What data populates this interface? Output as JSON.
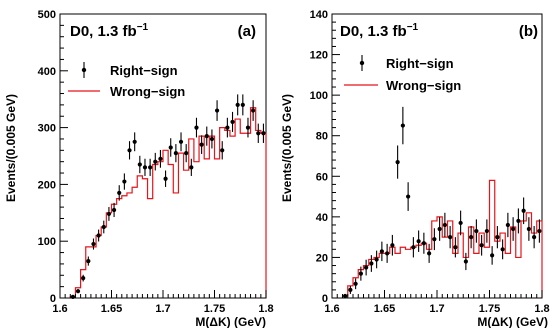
{
  "colors": {
    "right_sign": "#000000",
    "wrong_sign": "#e8141c"
  },
  "chart_data": [
    {
      "type": "scatter",
      "panel_label": "(a)",
      "title": "D0, 1.3 fb",
      "title_sup": "−1",
      "xlabel": "M(ΔK) (GeV)",
      "ylabel": "Events/(0.005 GeV)",
      "xlim": [
        1.6,
        1.8
      ],
      "ylim": [
        0,
        500
      ],
      "xticks": [
        "1.6",
        "1.65",
        "1.7",
        "1.75",
        "1.8"
      ],
      "yticks": [
        "0",
        "100",
        "200",
        "300",
        "400",
        "500"
      ],
      "legend": [
        "Right−sign",
        "Wrong−sign"
      ],
      "legend_position": "upper-left",
      "series": [
        {
          "name": "Right−sign",
          "style": "points-with-errors",
          "x": [
            1.6125,
            1.6175,
            1.6225,
            1.6275,
            1.6325,
            1.6375,
            1.6425,
            1.6475,
            1.6525,
            1.6575,
            1.6625,
            1.6675,
            1.6725,
            1.6775,
            1.6825,
            1.6875,
            1.6925,
            1.6975,
            1.7025,
            1.7075,
            1.7125,
            1.7175,
            1.7225,
            1.7275,
            1.7325,
            1.7375,
            1.7425,
            1.7475,
            1.7525,
            1.7575,
            1.7625,
            1.7675,
            1.7725,
            1.7775,
            1.7825,
            1.7875,
            1.7925,
            1.7975
          ],
          "y": [
            2,
            12,
            35,
            65,
            95,
            110,
            125,
            148,
            155,
            185,
            205,
            260,
            275,
            235,
            230,
            230,
            240,
            245,
            210,
            265,
            255,
            275,
            255,
            230,
            300,
            270,
            285,
            280,
            330,
            260,
            300,
            310,
            340,
            340,
            300,
            330,
            290,
            290
          ]
        },
        {
          "name": "Wrong−sign",
          "style": "step-histogram",
          "x": [
            1.6125,
            1.6175,
            1.6225,
            1.6275,
            1.6325,
            1.6375,
            1.6425,
            1.6475,
            1.6525,
            1.6575,
            1.6625,
            1.6675,
            1.6725,
            1.6775,
            1.6825,
            1.6875,
            1.6925,
            1.6975,
            1.7025,
            1.7075,
            1.7125,
            1.7175,
            1.7225,
            1.7275,
            1.7325,
            1.7375,
            1.7425,
            1.7475,
            1.7525,
            1.7575,
            1.7625,
            1.7675,
            1.7725,
            1.7775,
            1.7825,
            1.7875,
            1.7925,
            1.7975
          ],
          "y": [
            2,
            18,
            50,
            90,
            90,
            110,
            125,
            150,
            165,
            175,
            180,
            185,
            195,
            215,
            210,
            175,
            235,
            240,
            260,
            235,
            185,
            255,
            225,
            280,
            240,
            285,
            245,
            285,
            245,
            300,
            295,
            285,
            315,
            290,
            290,
            335,
            295,
            290
          ]
        }
      ]
    },
    {
      "type": "scatter",
      "panel_label": "(b)",
      "title": "D0, 1.3 fb",
      "title_sup": "−1",
      "xlabel": "M(ΔK) (GeV)",
      "ylabel": "Events/(0.005 GeV)",
      "xlim": [
        1.6,
        1.8
      ],
      "ylim": [
        0,
        140
      ],
      "xticks": [
        "1.6",
        "1.65",
        "1.7",
        "1.75",
        "1.8"
      ],
      "yticks": [
        "0",
        "20",
        "40",
        "60",
        "80",
        "100",
        "120",
        "140"
      ],
      "legend": [
        "Right−sign",
        "Wrong−sign"
      ],
      "legend_position": "upper-left",
      "series": [
        {
          "name": "Right−sign",
          "style": "points-with-errors",
          "x": [
            1.6125,
            1.6175,
            1.6225,
            1.6275,
            1.6325,
            1.6375,
            1.6425,
            1.6475,
            1.6525,
            1.6575,
            1.6625,
            1.6675,
            1.6725,
            1.6775,
            1.6825,
            1.6875,
            1.6925,
            1.6975,
            1.7025,
            1.7075,
            1.7125,
            1.7175,
            1.7225,
            1.7275,
            1.7325,
            1.7375,
            1.7425,
            1.7475,
            1.7525,
            1.7575,
            1.7625,
            1.7675,
            1.7725,
            1.7775,
            1.7825,
            1.7875,
            1.7925,
            1.7975
          ],
          "y": [
            1,
            4,
            7,
            12,
            15,
            17,
            19,
            23,
            22,
            26,
            67,
            85,
            50,
            25,
            28,
            27,
            22,
            29,
            34,
            36,
            30,
            25,
            37,
            18,
            30,
            33,
            26,
            33,
            21,
            30,
            24,
            36,
            34,
            38,
            43,
            34,
            30,
            33
          ]
        },
        {
          "name": "Wrong−sign",
          "style": "step-histogram",
          "x": [
            1.6125,
            1.6175,
            1.6225,
            1.6275,
            1.6325,
            1.6375,
            1.6425,
            1.6475,
            1.6525,
            1.6575,
            1.6625,
            1.6675,
            1.6725,
            1.6775,
            1.6825,
            1.6875,
            1.6925,
            1.6975,
            1.7025,
            1.7075,
            1.7125,
            1.7175,
            1.7225,
            1.7275,
            1.7325,
            1.7375,
            1.7425,
            1.7475,
            1.7525,
            1.7575,
            1.7625,
            1.7675,
            1.7725,
            1.7775,
            1.7825,
            1.7875,
            1.7925,
            1.7975
          ],
          "y": [
            1,
            6,
            10,
            14,
            16,
            19,
            20,
            22,
            22,
            25,
            22,
            25,
            24,
            25,
            26,
            27,
            24,
            38,
            40,
            30,
            38,
            22,
            32,
            20,
            35,
            22,
            32,
            25,
            58,
            28,
            32,
            22,
            35,
            20,
            38,
            42,
            32,
            38
          ]
        }
      ]
    }
  ]
}
